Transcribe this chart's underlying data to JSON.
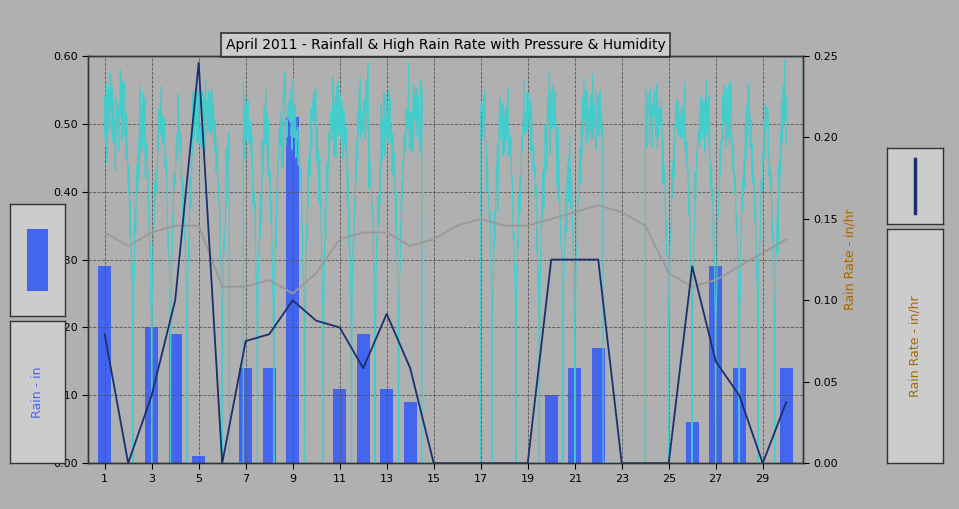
{
  "title": "April 2011 - Rainfall & High Rain Rate with Pressure & Humidity",
  "bg_color": "#b0b0b0",
  "plot_bg_color": "#b0b0b0",
  "ylabel_left": "Rain - in",
  "ylabel_right": "Rain Rate - in/hr",
  "ylim_left": [
    0.0,
    0.6
  ],
  "ylim_right": [
    0.0,
    0.25
  ],
  "yticks_left": [
    0.0,
    0.1,
    0.2,
    0.3,
    0.4,
    0.5,
    0.6
  ],
  "yticks_right": [
    0.0,
    0.05,
    0.1,
    0.15,
    0.2,
    0.25
  ],
  "xticks": [
    1,
    3,
    5,
    7,
    9,
    11,
    13,
    15,
    17,
    19,
    21,
    23,
    25,
    27,
    29
  ],
  "xlim": [
    0.3,
    30.7
  ],
  "days": [
    1,
    2,
    3,
    4,
    5,
    6,
    7,
    8,
    9,
    10,
    11,
    12,
    13,
    14,
    15,
    16,
    17,
    18,
    19,
    20,
    21,
    22,
    23,
    24,
    25,
    26,
    27,
    28,
    29,
    30
  ],
  "bar_color": "#4466ee",
  "bar_values": [
    0.29,
    0.0,
    0.2,
    0.19,
    0.01,
    0.0,
    0.14,
    0.14,
    0.51,
    0.0,
    0.11,
    0.19,
    0.11,
    0.09,
    0.0,
    0.0,
    0.0,
    0.0,
    0.0,
    0.1,
    0.14,
    0.17,
    0.0,
    0.0,
    0.0,
    0.06,
    0.29,
    0.14,
    0.0,
    0.14
  ],
  "cyan_color": "#44cccc",
  "gray_color": "#999999",
  "dark_blue_color": "#1a2f6e",
  "humidity": [
    0.34,
    0.32,
    0.34,
    0.35,
    0.35,
    0.26,
    0.26,
    0.27,
    0.25,
    0.28,
    0.33,
    0.34,
    0.34,
    0.32,
    0.33,
    0.35,
    0.36,
    0.35,
    0.35,
    0.36,
    0.37,
    0.38,
    0.37,
    0.35,
    0.28,
    0.26,
    0.27,
    0.29,
    0.31,
    0.33
  ],
  "dark_blue_values": [
    0.19,
    0.0,
    0.1,
    0.24,
    0.59,
    0.0,
    0.18,
    0.19,
    0.24,
    0.21,
    0.2,
    0.14,
    0.22,
    0.14,
    0.0,
    0.0,
    0.0,
    0.0,
    0.0,
    0.3,
    0.3,
    0.3,
    0.0,
    0.0,
    0.0,
    0.29,
    0.15,
    0.1,
    0.0,
    0.09
  ],
  "rr_seed": 123,
  "rr_n_dense": 2000
}
